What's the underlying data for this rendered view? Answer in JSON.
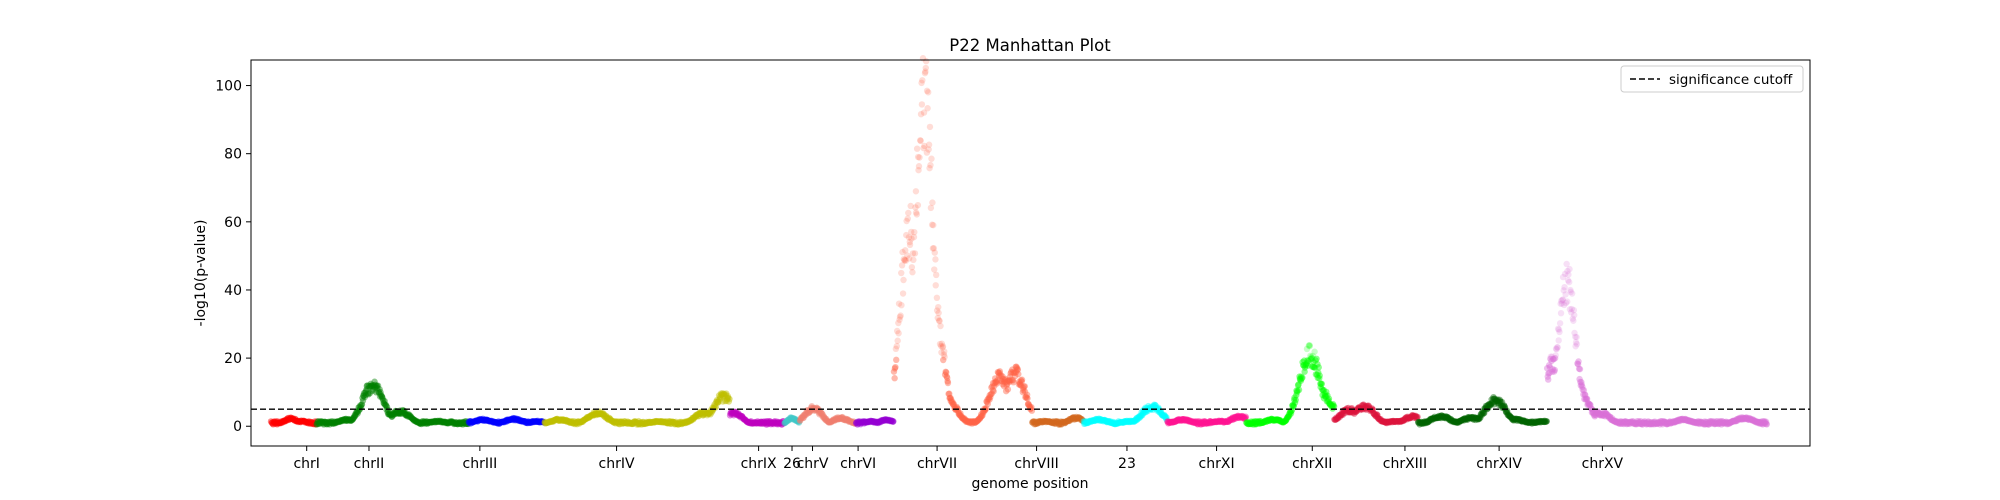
{
  "chart_data": {
    "type": "scatter",
    "title": "P22 Manhattan Plot",
    "xlabel": "genome position",
    "ylabel": "-log10(p-value)",
    "ylim": [
      -5.8,
      107.5
    ],
    "yticks": [
      0,
      20,
      40,
      60,
      80,
      100
    ],
    "grid": false,
    "legend_position": "top-right",
    "significance_cutoff": {
      "label": "significance cutoff",
      "y": 5
    },
    "chromosomes": [
      {
        "name": "chrI",
        "color": "#ff0000",
        "start": 0.0,
        "end": 0.03,
        "label_pos": 0.0235,
        "peaks": [
          [
            0.013,
            2.3
          ],
          [
            0.02,
            1.5
          ]
        ]
      },
      {
        "name": "chrII",
        "color": "#008000",
        "start": 0.03,
        "end": 0.13,
        "label_pos": 0.0645,
        "peaks": [
          [
            0.05,
            2.0
          ],
          [
            0.067,
            12.5
          ],
          [
            0.085,
            4.5
          ],
          [
            0.11,
            1.5
          ]
        ]
      },
      {
        "name": "chrIII",
        "color": "#0000ff",
        "start": 0.13,
        "end": 0.18,
        "label_pos": 0.1375,
        "peaks": [
          [
            0.14,
            2.0
          ],
          [
            0.16,
            2.2
          ],
          [
            0.175,
            1.5
          ]
        ]
      },
      {
        "name": "chrIV",
        "color": "#bfbf00",
        "start": 0.18,
        "end": 0.302,
        "label_pos": 0.2275,
        "peaks": [
          [
            0.19,
            2.0
          ],
          [
            0.215,
            4.0
          ],
          [
            0.255,
            1.5
          ],
          [
            0.285,
            4.0
          ],
          [
            0.298,
            9.0
          ]
        ]
      },
      {
        "name": "chrIX",
        "color": "#bf00bf",
        "start": 0.302,
        "end": 0.338,
        "label_pos": 0.321,
        "peaks": [
          [
            0.305,
            4.0
          ],
          [
            0.32,
            1.0
          ]
        ]
      },
      {
        "name": "26",
        "color": "#40c8c8",
        "start": 0.338,
        "end": 0.348,
        "label_pos": 0.343,
        "peaks": [
          [
            0.343,
            2.5
          ]
        ]
      },
      {
        "name": "chrV",
        "color": "#f07f6e",
        "start": 0.348,
        "end": 0.385,
        "label_pos": 0.3565,
        "peaks": [
          [
            0.357,
            5.5
          ],
          [
            0.375,
            2.5
          ]
        ]
      },
      {
        "name": "chrVI",
        "color": "#9400d3",
        "start": 0.385,
        "end": 0.41,
        "label_pos": 0.3865,
        "peaks": [
          [
            0.395,
            1.5
          ],
          [
            0.405,
            2.0
          ]
        ]
      },
      {
        "name": "chrVII",
        "color": "#ff6347",
        "start": 0.41,
        "end": 0.501,
        "label_pos": 0.4385,
        "peaks": [
          [
            0.412,
            3.0
          ],
          [
            0.42,
            60.0
          ],
          [
            0.43,
            100.0
          ],
          [
            0.437,
            35.0
          ],
          [
            0.445,
            8.0
          ],
          [
            0.47,
            1.5
          ],
          [
            0.48,
            15.0
          ],
          [
            0.49,
            16.0
          ]
        ]
      },
      {
        "name": "chrVIII",
        "color": "#d2691e",
        "start": 0.501,
        "end": 0.535,
        "label_pos": 0.504,
        "peaks": [
          [
            0.51,
            1.5
          ],
          [
            0.53,
            2.5
          ]
        ]
      },
      {
        "name": "23",
        "color": "#00ffff",
        "start": 0.535,
        "end": 0.59,
        "label_pos": 0.5635,
        "peaks": [
          [
            0.545,
            2.0
          ],
          [
            0.565,
            1.5
          ],
          [
            0.58,
            6.0
          ]
        ]
      },
      {
        "name": "chrXI",
        "color": "#ff1493",
        "start": 0.59,
        "end": 0.642,
        "label_pos": 0.6225,
        "peaks": [
          [
            0.6,
            2.0
          ],
          [
            0.625,
            1.5
          ],
          [
            0.638,
            3.0
          ]
        ]
      },
      {
        "name": "chrXII",
        "color": "#00ff00",
        "start": 0.642,
        "end": 0.7,
        "label_pos": 0.6855,
        "peaks": [
          [
            0.66,
            2.0
          ],
          [
            0.676,
            2.5
          ],
          [
            0.684,
            22.0
          ],
          [
            0.692,
            10.0
          ],
          [
            0.697,
            5.0
          ]
        ]
      },
      {
        "name": "chrXIII",
        "color": "#dc143c",
        "start": 0.7,
        "end": 0.755,
        "label_pos": 0.7465,
        "peaks": [
          [
            0.71,
            5.0
          ],
          [
            0.72,
            6.0
          ],
          [
            0.74,
            1.5
          ],
          [
            0.752,
            3.0
          ]
        ]
      },
      {
        "name": "chrXIV",
        "color": "#006400",
        "start": 0.755,
        "end": 0.84,
        "label_pos": 0.8085,
        "peaks": [
          [
            0.77,
            3.0
          ],
          [
            0.79,
            2.5
          ],
          [
            0.806,
            8.0
          ],
          [
            0.82,
            2.0
          ],
          [
            0.838,
            1.5
          ]
        ]
      },
      {
        "name": "chrXV",
        "color": "#da70d6",
        "start": 0.84,
        "end": 0.985,
        "label_pos": 0.8765,
        "peaks": [
          [
            0.845,
            20.0
          ],
          [
            0.853,
            44.0
          ],
          [
            0.86,
            12.0
          ],
          [
            0.875,
            4.0
          ],
          [
            0.93,
            2.0
          ],
          [
            0.97,
            2.5
          ]
        ]
      }
    ]
  }
}
